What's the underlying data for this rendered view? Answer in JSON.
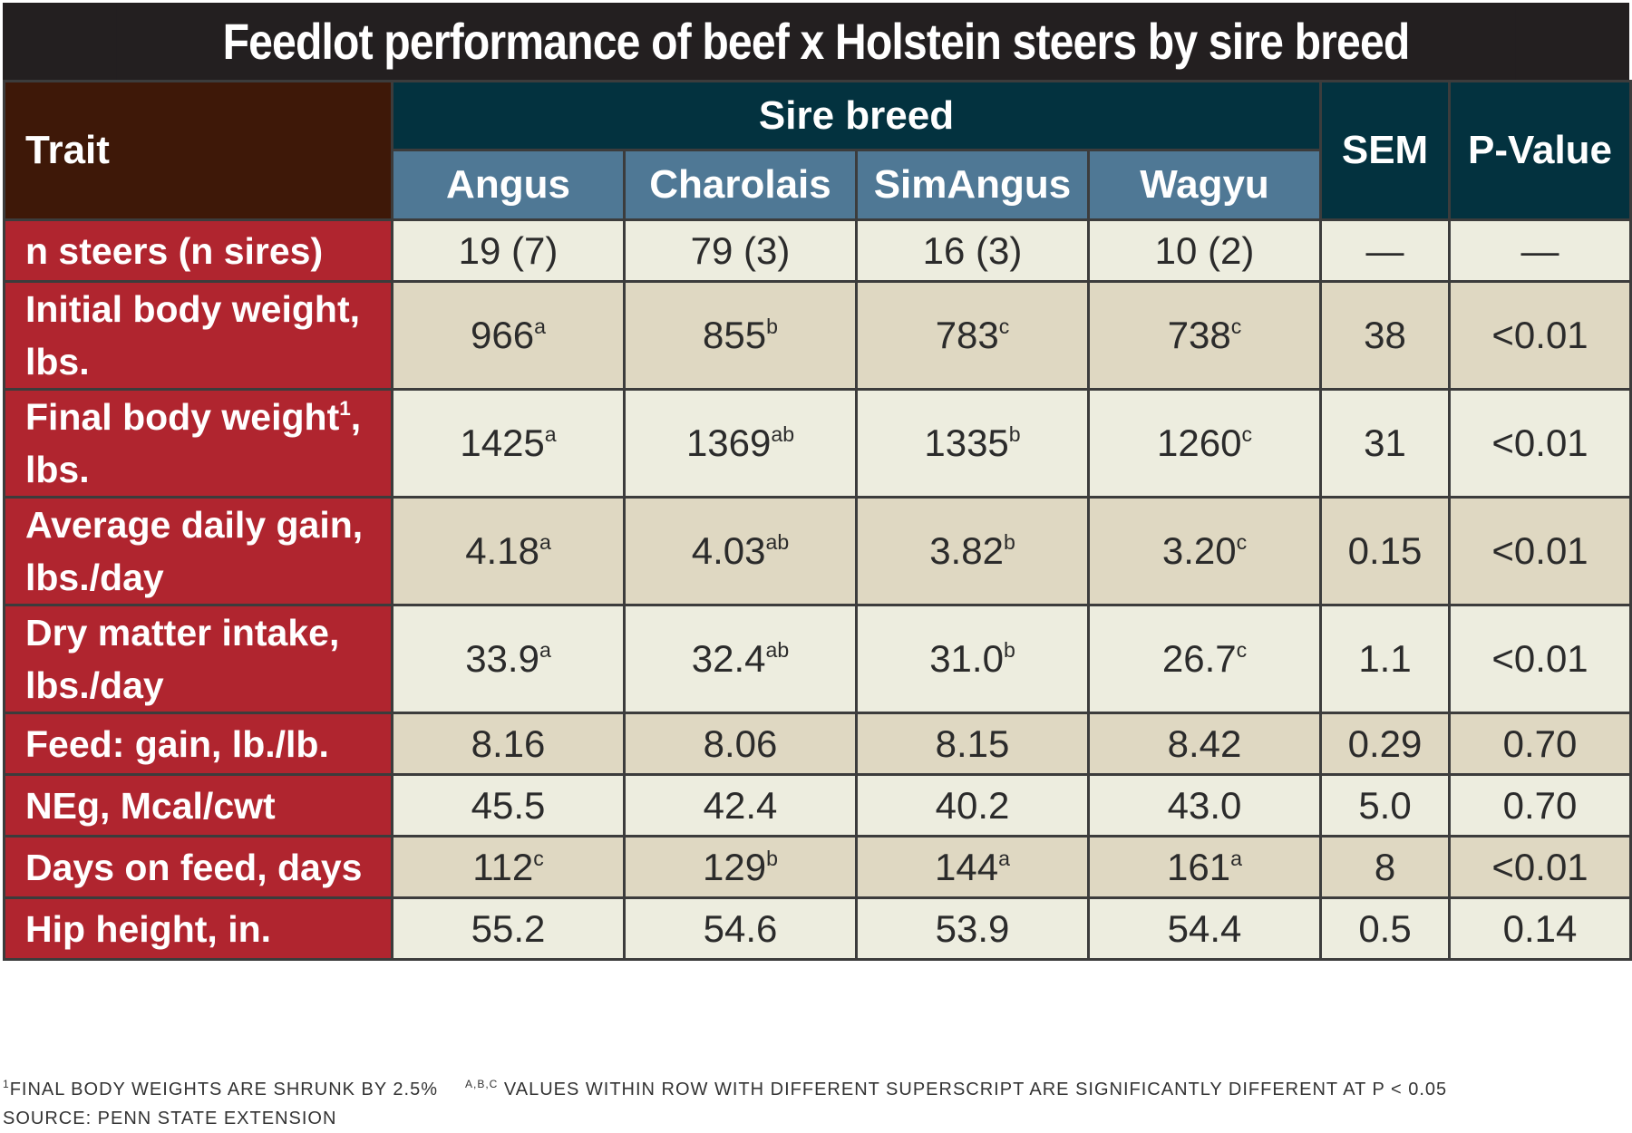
{
  "title": "Feedlot performance of beef x Holstein steers by sire breed",
  "chart_data": {
    "type": "table",
    "header": {
      "trait": "Trait",
      "group": "Sire breed",
      "breeds": [
        "Angus",
        "Charolais",
        "SimAngus",
        "Wagyu"
      ],
      "sem": "SEM",
      "pvalue": "P-Value"
    },
    "rows": [
      {
        "trait": "n steers (n sires)",
        "sup": "",
        "trait_tail": "",
        "values": [
          {
            "v": "19 (7)",
            "s": ""
          },
          {
            "v": "79 (3)",
            "s": ""
          },
          {
            "v": "16 (3)",
            "s": ""
          },
          {
            "v": "10 (2)",
            "s": ""
          }
        ],
        "sem": "—",
        "p": "—"
      },
      {
        "trait": "Initial body weight, lbs.",
        "sup": "",
        "trait_tail": "",
        "values": [
          {
            "v": "966",
            "s": "a"
          },
          {
            "v": "855",
            "s": "b"
          },
          {
            "v": "783",
            "s": "c"
          },
          {
            "v": "738",
            "s": "c"
          }
        ],
        "sem": "38",
        "p": "<0.01"
      },
      {
        "trait": "Final body weight",
        "sup": "1",
        "trait_tail": ", lbs.",
        "values": [
          {
            "v": "1425",
            "s": "a"
          },
          {
            "v": "1369",
            "s": "ab"
          },
          {
            "v": "1335",
            "s": "b"
          },
          {
            "v": "1260",
            "s": "c"
          }
        ],
        "sem": "31",
        "p": "<0.01"
      },
      {
        "trait": "Average daily gain, lbs./day",
        "sup": "",
        "trait_tail": "",
        "values": [
          {
            "v": "4.18",
            "s": "a"
          },
          {
            "v": "4.03",
            "s": "ab"
          },
          {
            "v": "3.82",
            "s": "b"
          },
          {
            "v": "3.20",
            "s": "c"
          }
        ],
        "sem": "0.15",
        "p": "<0.01"
      },
      {
        "trait": "Dry matter intake, lbs./day",
        "sup": "",
        "trait_tail": "",
        "values": [
          {
            "v": "33.9",
            "s": "a"
          },
          {
            "v": "32.4",
            "s": "ab"
          },
          {
            "v": "31.0",
            "s": "b"
          },
          {
            "v": "26.7",
            "s": "c"
          }
        ],
        "sem": "1.1",
        "p": "<0.01"
      },
      {
        "trait": "Feed: gain, lb./lb.",
        "sup": "",
        "trait_tail": "",
        "values": [
          {
            "v": "8.16",
            "s": ""
          },
          {
            "v": "8.06",
            "s": ""
          },
          {
            "v": "8.15",
            "s": ""
          },
          {
            "v": "8.42",
            "s": ""
          }
        ],
        "sem": "0.29",
        "p": "0.70"
      },
      {
        "trait": "NEg, Mcal/cwt",
        "sup": "",
        "trait_tail": "",
        "values": [
          {
            "v": "45.5",
            "s": ""
          },
          {
            "v": "42.4",
            "s": ""
          },
          {
            "v": "40.2",
            "s": ""
          },
          {
            "v": "43.0",
            "s": ""
          }
        ],
        "sem": "5.0",
        "p": "0.70"
      },
      {
        "trait": "Days on feed, days",
        "sup": "",
        "trait_tail": "",
        "values": [
          {
            "v": "112",
            "s": "c"
          },
          {
            "v": "129",
            "s": "b"
          },
          {
            "v": "144",
            "s": "a"
          },
          {
            "v": "161",
            "s": "a"
          }
        ],
        "sem": "8",
        "p": "<0.01"
      },
      {
        "trait": "Hip height, in.",
        "sup": "",
        "trait_tail": "",
        "values": [
          {
            "v": "55.2",
            "s": ""
          },
          {
            "v": "54.6",
            "s": ""
          },
          {
            "v": "53.9",
            "s": ""
          },
          {
            "v": "54.4",
            "s": ""
          }
        ],
        "sem": "0.5",
        "p": "0.14"
      }
    ]
  },
  "footnotes": {
    "note1_sup": "1",
    "note1": "FINAL BODY WEIGHTS ARE SHRUNK BY 2.5%",
    "note2_sup": "A,B,C",
    "note2": " VALUES WITHIN ROW WITH DIFFERENT SUPERSCRIPT ARE SIGNIFICANTLY DIFFERENT AT P < 0.05",
    "source": "SOURCE: PENN STATE EXTENSION"
  },
  "colors": {
    "title_bg": "#231f20",
    "trait_header_bg": "#3e1808",
    "group_header_bg": "#03323f",
    "breed_header_bg": "#4f7895",
    "trait_cell_bg": "#b0252f",
    "row_light": "#ededdf",
    "row_dark": "#dfd8c2"
  }
}
